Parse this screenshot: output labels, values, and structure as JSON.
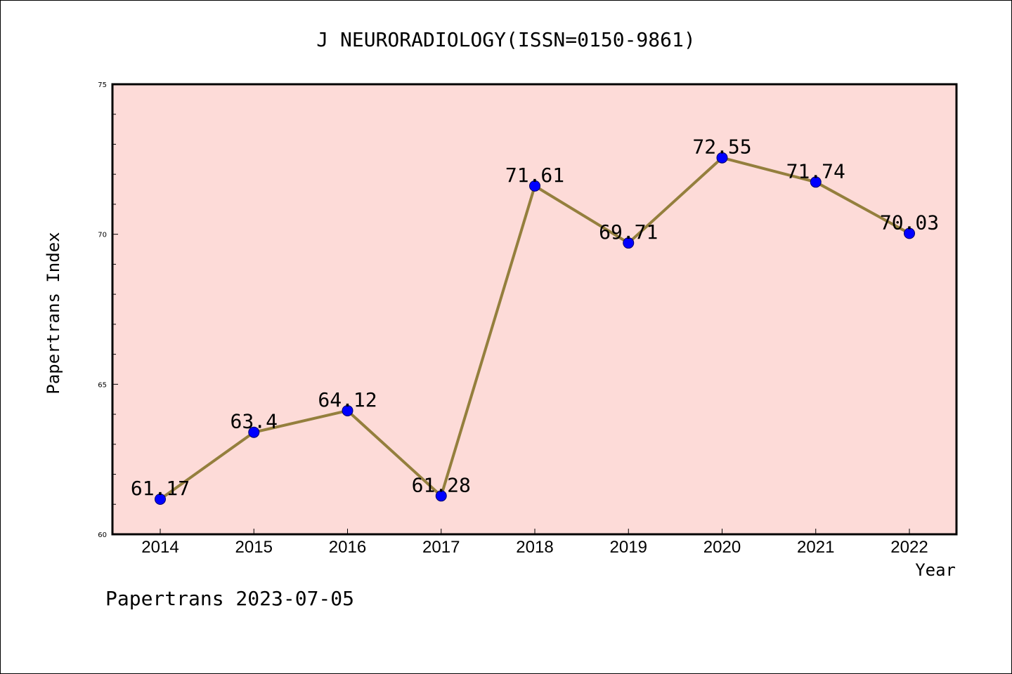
{
  "footer": "Papertrans 2023-07-05",
  "colors": {
    "plot_background": "#fddbd8",
    "line": "#947f3d",
    "marker": "#0000ff",
    "axis": "#000000"
  },
  "chart_data": {
    "type": "line",
    "title": "J NEURORADIOLOGY(ISSN=0150-9861)",
    "xlabel": "Year",
    "ylabel": "Papertrans Index",
    "categories": [
      "2014",
      "2015",
      "2016",
      "2017",
      "2018",
      "2019",
      "2020",
      "2021",
      "2022"
    ],
    "values": [
      61.17,
      63.4,
      64.12,
      61.28,
      71.61,
      69.71,
      72.55,
      71.74,
      70.03
    ],
    "data_labels": [
      "61.17",
      "63.4",
      "64.12",
      "61.28",
      "71.61",
      "69.71",
      "72.55",
      "71.74",
      "70.03"
    ],
    "ylim": [
      60,
      75
    ],
    "yticks": [
      "60",
      "65",
      "70",
      "75"
    ],
    "grid": false,
    "legend": "none"
  }
}
